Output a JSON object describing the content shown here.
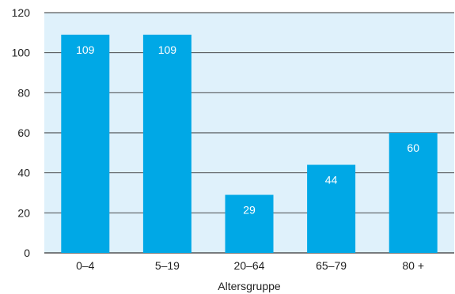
{
  "chart_data": {
    "type": "bar",
    "title": "",
    "xlabel": "Altersgruppe",
    "ylabel": "",
    "categories": [
      "0–4",
      "5–19",
      "20–64",
      "65–79",
      "80 +"
    ],
    "values": [
      109,
      109,
      29,
      44,
      60
    ],
    "data_labels": [
      "109",
      "109",
      "29",
      "44",
      "60"
    ],
    "ylim": [
      0,
      120
    ],
    "yticks": [
      0,
      20,
      40,
      60,
      80,
      100,
      120
    ],
    "grid": "horizontal",
    "legend": "none",
    "colors": {
      "bar": "#00a8e6",
      "plot_background": "#dff1fb",
      "gridline": "#333333",
      "label": "#ffffff"
    }
  }
}
